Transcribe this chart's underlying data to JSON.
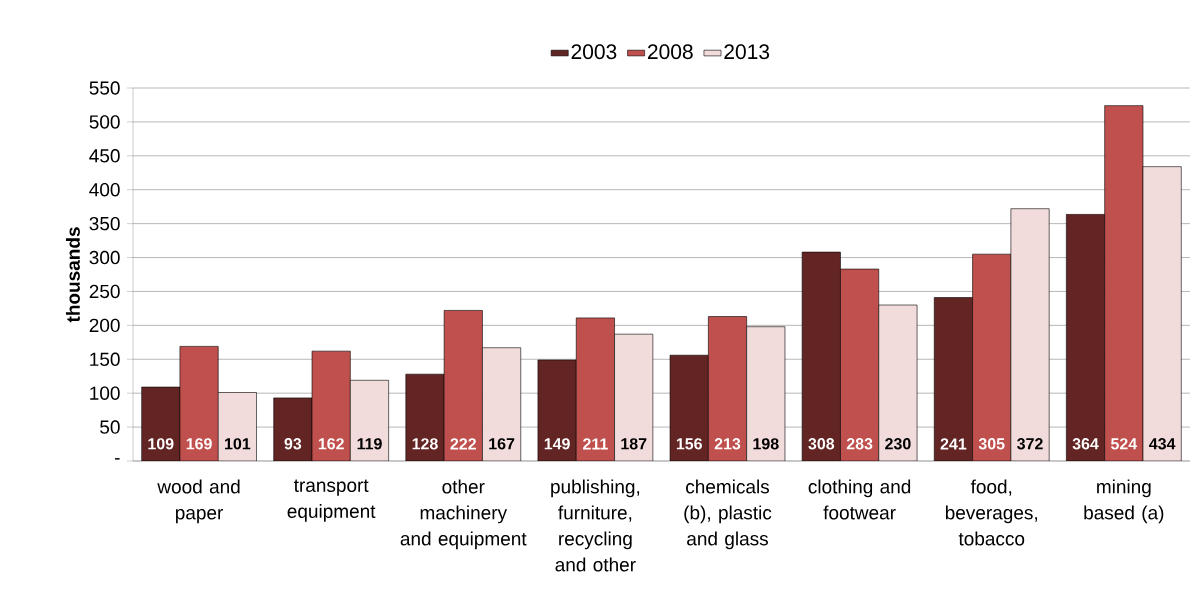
{
  "chart_data": {
    "type": "bar",
    "ylabel": "thousands",
    "categories": [
      "wood and paper",
      "transport equipment",
      "other machinery and equipment",
      "publishing, furniture, recycling and other",
      "chemicals (b), plastic and glass",
      "clothing and footwear",
      "food, beverages, tobacco",
      "mining based (a)"
    ],
    "series": [
      {
        "name": "2003",
        "color": "#632523",
        "values": [
          109,
          93,
          128,
          149,
          156,
          308,
          241,
          364
        ]
      },
      {
        "name": "2008",
        "color": "#c0504d",
        "values": [
          169,
          162,
          222,
          211,
          213,
          283,
          305,
          524
        ]
      },
      {
        "name": "2013",
        "color": "#f2dcdb",
        "values": [
          101,
          119,
          167,
          187,
          198,
          230,
          372,
          434
        ]
      }
    ],
    "ylim": [
      0,
      550
    ],
    "yticks": [
      {
        "value": 0,
        "label": "-"
      },
      50,
      100,
      150,
      200,
      250,
      300,
      350,
      400,
      450,
      500,
      550
    ],
    "grid": "y",
    "legend": "top",
    "data_labels": true
  }
}
